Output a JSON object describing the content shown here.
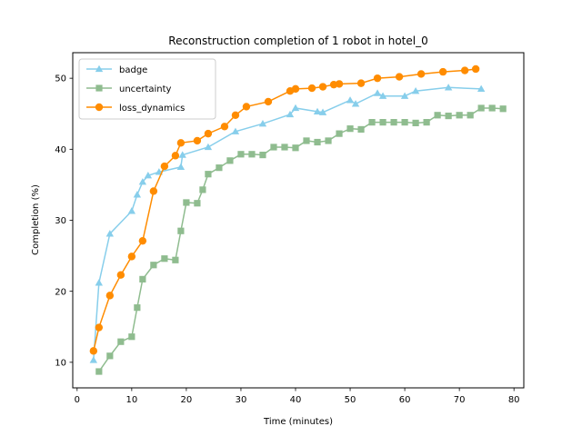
{
  "chart_data": {
    "type": "line",
    "title": "Reconstruction completion of 1 robot in hotel_0",
    "xlabel": "Time (minutes)",
    "ylabel": "Completion (%)",
    "xlim": [
      -0.8,
      81.8
    ],
    "ylim": [
      6.4,
      53.6
    ],
    "xticks": [
      0,
      10,
      20,
      30,
      40,
      50,
      60,
      70,
      80
    ],
    "yticks": [
      10,
      20,
      30,
      40,
      50
    ],
    "grid": false,
    "legend_position": "top-left",
    "series": [
      {
        "name": "badge",
        "color": "#87ceeb",
        "marker": "triangle",
        "x": [
          3,
          4,
          6,
          10,
          11,
          12,
          13,
          15,
          19,
          19.3,
          24,
          29,
          34,
          39,
          40,
          44,
          45,
          50,
          51,
          55,
          56,
          60,
          62,
          68,
          74
        ],
        "y": [
          10.3,
          21.2,
          28.1,
          31.3,
          33.6,
          35.4,
          36.3,
          36.8,
          37.5,
          39.2,
          40.3,
          42.5,
          43.6,
          44.9,
          45.8,
          45.3,
          45.2,
          46.9,
          46.4,
          47.9,
          47.5,
          47.5,
          48.2,
          48.7,
          48.5
        ]
      },
      {
        "name": "uncertainty",
        "color": "#8fbc8f",
        "marker": "square",
        "x": [
          4,
          6,
          8,
          10,
          11,
          12,
          14,
          16,
          18,
          19,
          20,
          22,
          23,
          24,
          26,
          28,
          30,
          32,
          34,
          36,
          38,
          40,
          42,
          44,
          46,
          48,
          50,
          52,
          54,
          56,
          58,
          60,
          62,
          64,
          66,
          68,
          70,
          72,
          74,
          76,
          78
        ],
        "y": [
          8.7,
          10.9,
          12.9,
          13.6,
          17.7,
          21.7,
          23.7,
          24.6,
          24.4,
          28.5,
          32.5,
          32.4,
          34.3,
          36.5,
          37.4,
          38.4,
          39.3,
          39.3,
          39.2,
          40.3,
          40.3,
          40.2,
          41.2,
          41.0,
          41.2,
          42.2,
          42.9,
          42.8,
          43.8,
          43.8,
          43.8,
          43.8,
          43.7,
          43.8,
          44.8,
          44.7,
          44.8,
          44.8,
          45.8,
          45.8,
          45.7
        ]
      },
      {
        "name": "loss_dynamics",
        "color": "#ff8c00",
        "marker": "circle",
        "x": [
          3,
          4,
          6,
          8,
          10,
          12,
          14,
          16,
          18,
          19,
          22,
          24,
          27,
          29,
          31,
          35,
          39,
          40,
          43,
          45,
          47,
          48,
          52,
          55,
          59,
          63,
          67,
          71,
          73
        ],
        "y": [
          11.6,
          14.9,
          19.4,
          22.3,
          24.9,
          27.1,
          34.1,
          37.6,
          39.1,
          40.9,
          41.2,
          42.2,
          43.2,
          44.8,
          46.0,
          46.7,
          48.2,
          48.5,
          48.6,
          48.8,
          49.1,
          49.2,
          49.3,
          50.0,
          50.2,
          50.6,
          50.9,
          51.1,
          51.3
        ]
      }
    ]
  }
}
